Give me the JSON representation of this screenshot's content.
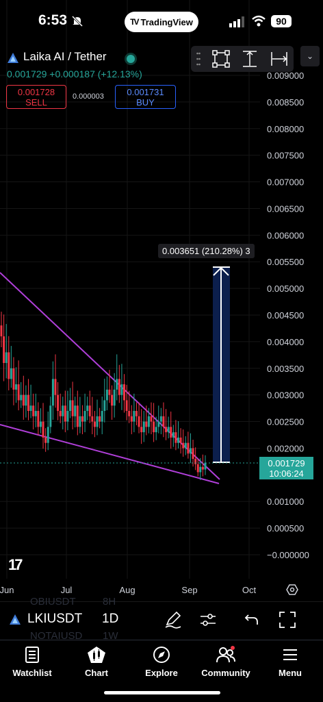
{
  "status": {
    "time": "6:53",
    "battery": "90"
  },
  "app_badge": {
    "label": "TradingView",
    "logo": "TV"
  },
  "header": {
    "title": "Laika AI / Tether",
    "price": "0.001729",
    "change": "+0.000187",
    "change_pct": "(+12.13%)",
    "sell_price": "0.001728",
    "sell_label": "SELL",
    "spread": "0.000003",
    "buy_price": "0.001731",
    "buy_label": "BUY"
  },
  "toolbar": {
    "chevron": "⌄"
  },
  "measure": {
    "label": "0.003651 (210.28%) 3"
  },
  "price_tag": {
    "price": "0.001729",
    "countdown": "10:06:24"
  },
  "watermark": "17",
  "bottom_bar": {
    "symbol": "LKIUSDT",
    "interval": "1D",
    "ghost_rows": [
      "OBIUSDT",
      "NOTAIUSD",
      "8H",
      "1W"
    ]
  },
  "nav": [
    {
      "label": "Watchlist",
      "icon": "watchlist-icon"
    },
    {
      "label": "Chart",
      "icon": "chart-icon"
    },
    {
      "label": "Explore",
      "icon": "explore-icon"
    },
    {
      "label": "Community",
      "icon": "community-icon"
    },
    {
      "label": "Menu",
      "icon": "menu-icon"
    }
  ],
  "colors": {
    "up": "#26a69a",
    "down": "#f23645",
    "trendline": "#b03fd9",
    "measure_fill": "#0c1f4d",
    "accent": "#2962ff"
  },
  "chart_data": {
    "type": "candlestick",
    "y_ticks": [
      "0.009000",
      "0.008500",
      "0.008000",
      "0.007500",
      "0.007000",
      "0.006500",
      "0.006000",
      "0.005500",
      "0.005000",
      "0.004500",
      "0.004000",
      "0.003500",
      "0.003000",
      "0.002500",
      "0.002000",
      "0.001000",
      "0.000500",
      "−0.000000"
    ],
    "x_ticks": [
      "Jun",
      "Jul",
      "Aug",
      "Sep",
      "Oct"
    ],
    "ylim": [
      0,
      0.009
    ],
    "last_price": 0.001729,
    "measure": {
      "from": 0.001729,
      "to": 0.00538,
      "delta": 0.003651,
      "pct": 210.28
    },
    "closes": [
      0.0041,
      0.0036,
      0.0038,
      0.0033,
      0.0035,
      0.0031,
      0.0032,
      0.0029,
      0.003,
      0.0028,
      0.003,
      0.0027,
      0.0028,
      0.0026,
      0.0027,
      0.0024,
      0.0025,
      0.0022,
      0.0021,
      0.0024,
      0.0028,
      0.0033,
      0.003,
      0.0027,
      0.0026,
      0.0028,
      0.0025,
      0.0027,
      0.0029,
      0.0026,
      0.0028,
      0.0024,
      0.0026,
      0.0025,
      0.0027,
      0.0028,
      0.0026,
      0.0025,
      0.0024,
      0.0026,
      0.0025,
      0.0027,
      0.0029,
      0.0031,
      0.003,
      0.0028,
      0.0031,
      0.0033,
      0.003,
      0.0032,
      0.0029,
      0.0027,
      0.0026,
      0.0025,
      0.0027,
      0.0026,
      0.0024,
      0.0023,
      0.0025,
      0.0024,
      0.0026,
      0.0025,
      0.0023,
      0.0024,
      0.0025,
      0.0026,
      0.0024,
      0.0023,
      0.0024,
      0.0022,
      0.0023,
      0.0021,
      0.0022,
      0.0021,
      0.002,
      0.0021,
      0.0019,
      0.002,
      0.0018,
      0.0017,
      0.00155,
      0.00165,
      0.0016,
      0.001729
    ]
  }
}
